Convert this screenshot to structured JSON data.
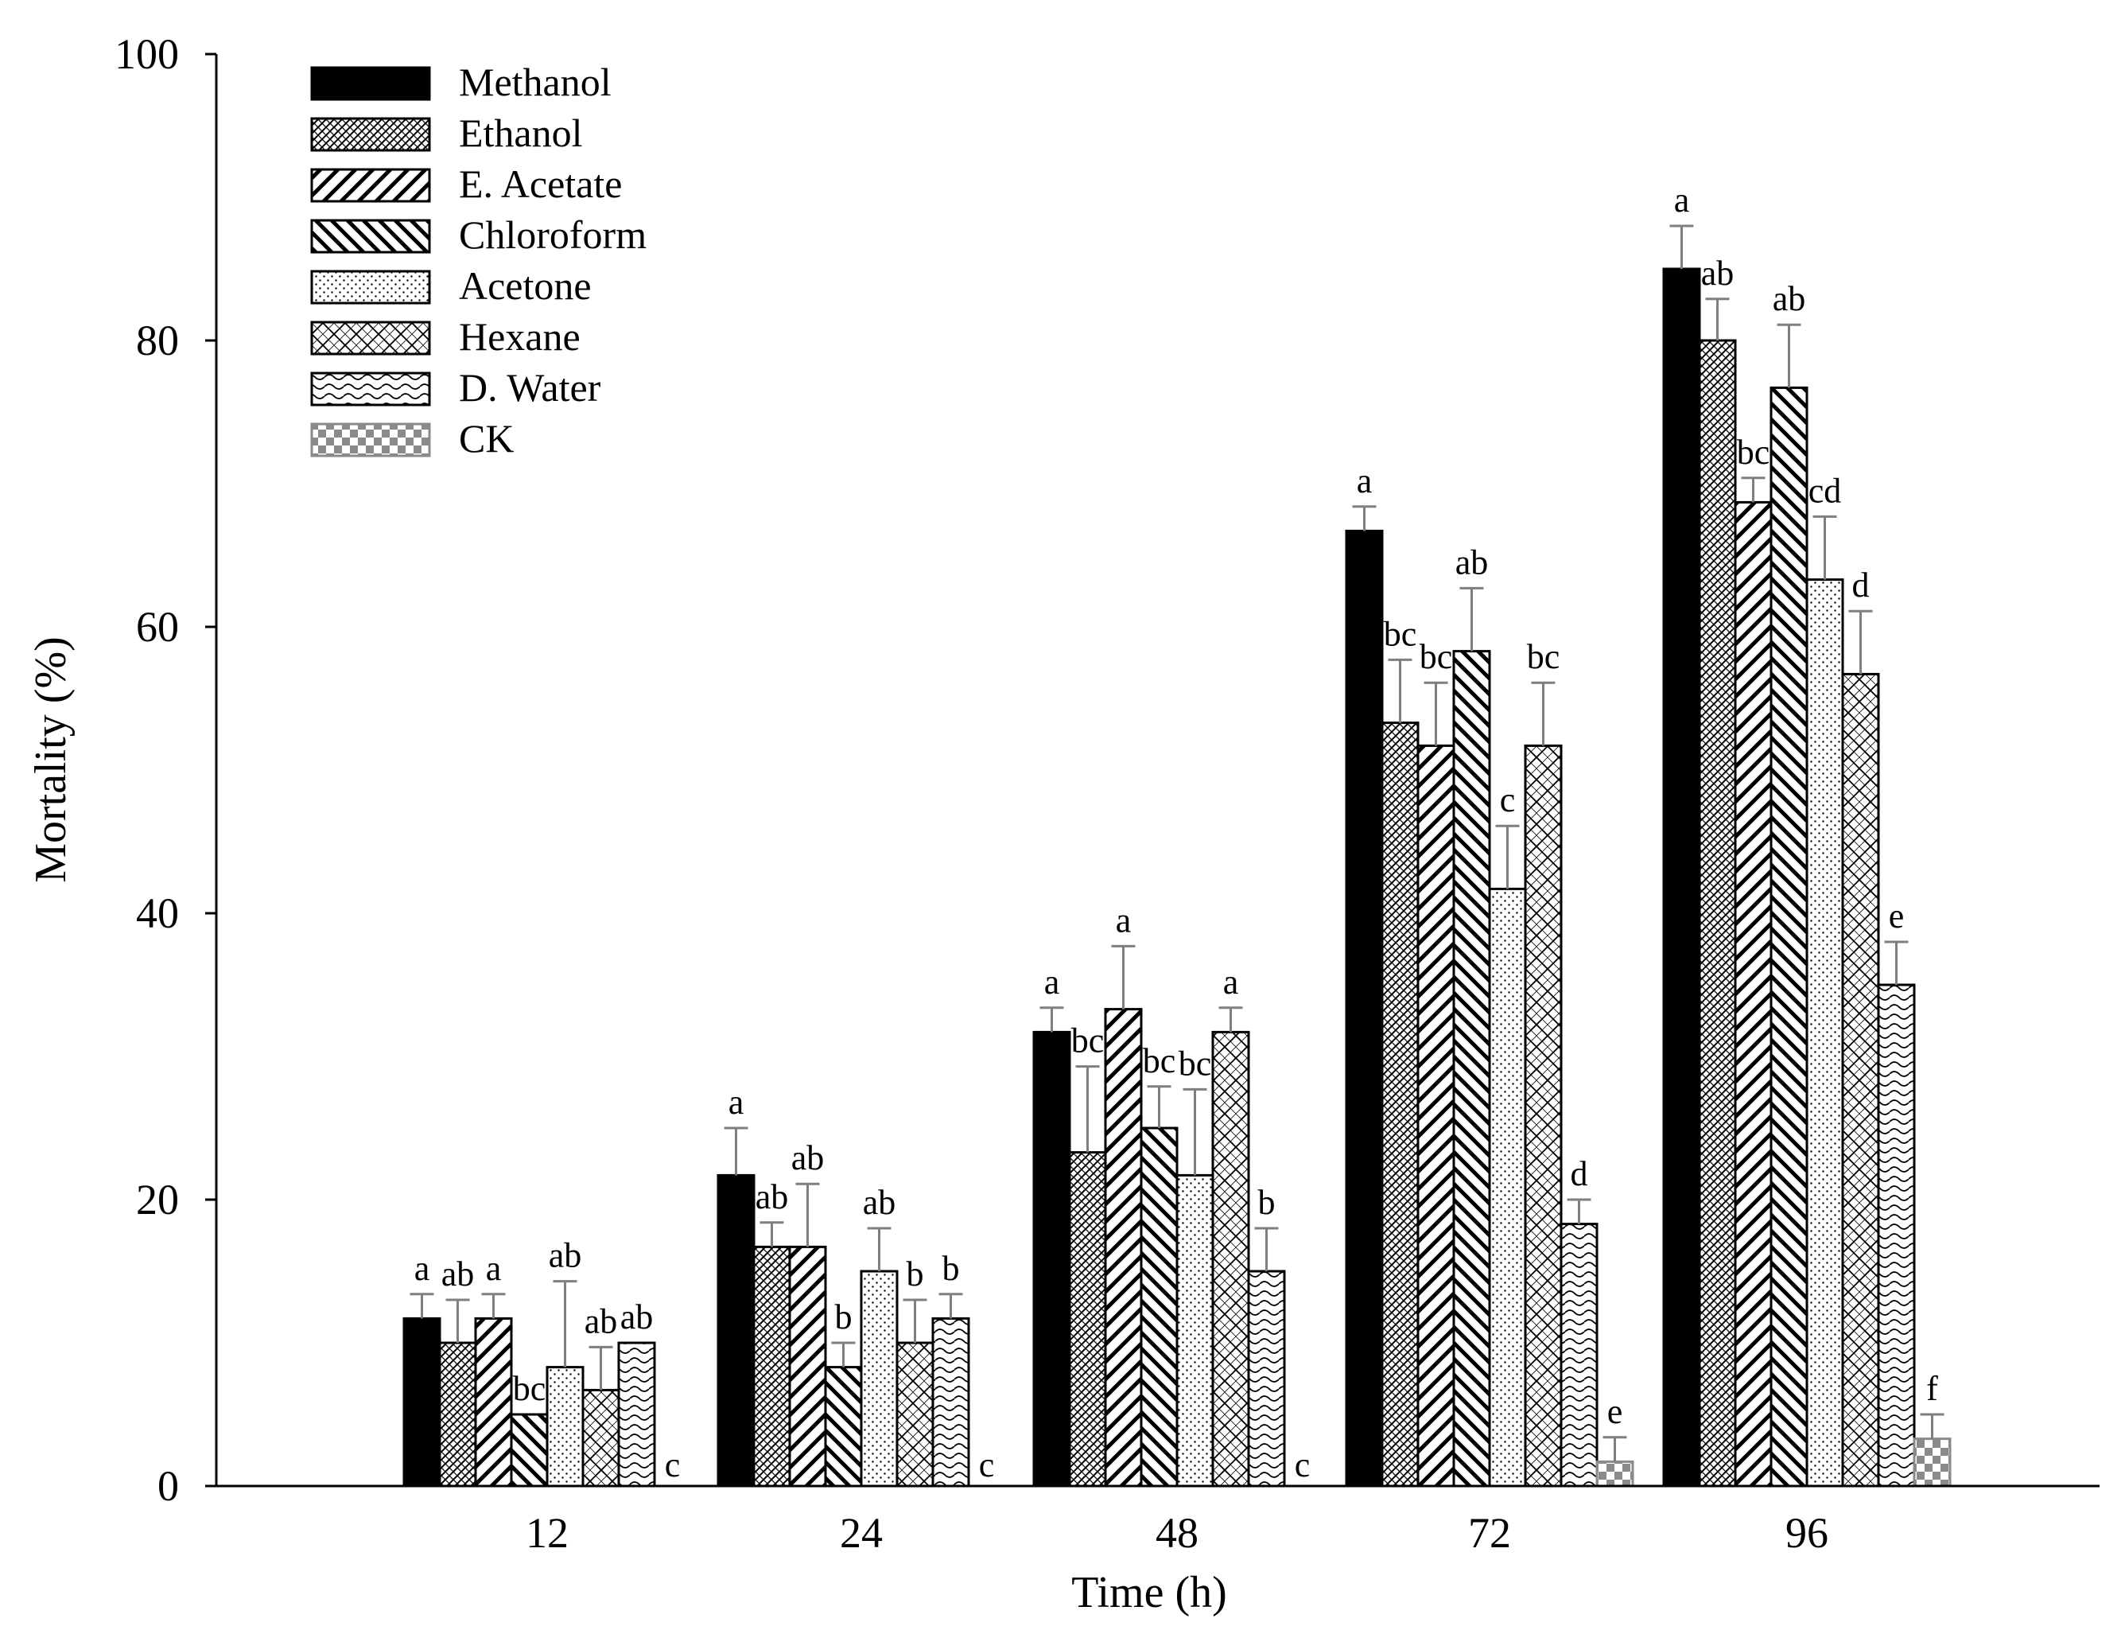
{
  "chart_data": {
    "type": "bar",
    "title": "",
    "xlabel": "Time (h)",
    "ylabel": "Mortality (%)",
    "ylim": [
      0,
      100
    ],
    "yticks": [
      0,
      20,
      40,
      60,
      80,
      100
    ],
    "categories": [
      "12",
      "24",
      "48",
      "72",
      "96"
    ],
    "legend_position": "top-left",
    "series": [
      {
        "name": "Methanol",
        "pattern": "solid",
        "values": [
          11.7,
          21.7,
          31.7,
          66.7,
          85.0
        ],
        "errors": [
          1.7,
          3.3,
          1.7,
          1.7,
          3.0
        ],
        "letters": [
          "a",
          "a",
          "a",
          "a",
          "a"
        ]
      },
      {
        "name": "Ethanol",
        "pattern": "crosshatch",
        "values": [
          10.0,
          16.7,
          23.3,
          53.3,
          80.0
        ],
        "errors": [
          3.0,
          1.7,
          6.0,
          4.4,
          2.9
        ],
        "letters": [
          "ab",
          "ab",
          "bc",
          "bc",
          "ab"
        ]
      },
      {
        "name": "E. Acetate",
        "pattern": "diag-up",
        "values": [
          11.7,
          16.7,
          33.3,
          51.7,
          68.7
        ],
        "errors": [
          1.7,
          4.4,
          4.4,
          4.4,
          1.7
        ],
        "letters": [
          "a",
          "ab",
          "a",
          "bc",
          "bc"
        ]
      },
      {
        "name": "Chloroform",
        "pattern": "diag-down",
        "values": [
          5.0,
          8.3,
          25.0,
          58.3,
          76.7
        ],
        "errors": [
          0.0,
          1.7,
          2.9,
          4.4,
          4.4
        ],
        "letters": [
          "bc",
          "b",
          "bc",
          "ab",
          "ab"
        ]
      },
      {
        "name": "Acetone",
        "pattern": "dots",
        "values": [
          8.3,
          15.0,
          21.7,
          41.7,
          63.3
        ],
        "errors": [
          6.0,
          3.0,
          6.0,
          4.4,
          4.4
        ],
        "letters": [
          "ab",
          "ab",
          "bc",
          "c",
          "cd"
        ]
      },
      {
        "name": "Hexane",
        "pattern": "diamond",
        "values": [
          6.7,
          10.0,
          31.7,
          51.7,
          56.7
        ],
        "errors": [
          3.0,
          3.0,
          1.7,
          4.4,
          4.4
        ],
        "letters": [
          "ab",
          "b",
          "a",
          "bc",
          "d"
        ]
      },
      {
        "name": "D. Water",
        "pattern": "wave",
        "values": [
          10.0,
          11.7,
          15.0,
          18.3,
          35.0
        ],
        "errors": [
          0.0,
          1.7,
          3.0,
          1.7,
          3.0
        ],
        "letters": [
          "ab",
          "b",
          "b",
          "d",
          "e"
        ]
      },
      {
        "name": "CK",
        "pattern": "checker",
        "values": [
          0.0,
          0.0,
          0.0,
          1.7,
          3.3
        ],
        "errors": [
          0.0,
          0.0,
          0.0,
          1.7,
          1.7
        ],
        "letters": [
          "c",
          "c",
          "c",
          "e",
          "f"
        ]
      }
    ]
  }
}
